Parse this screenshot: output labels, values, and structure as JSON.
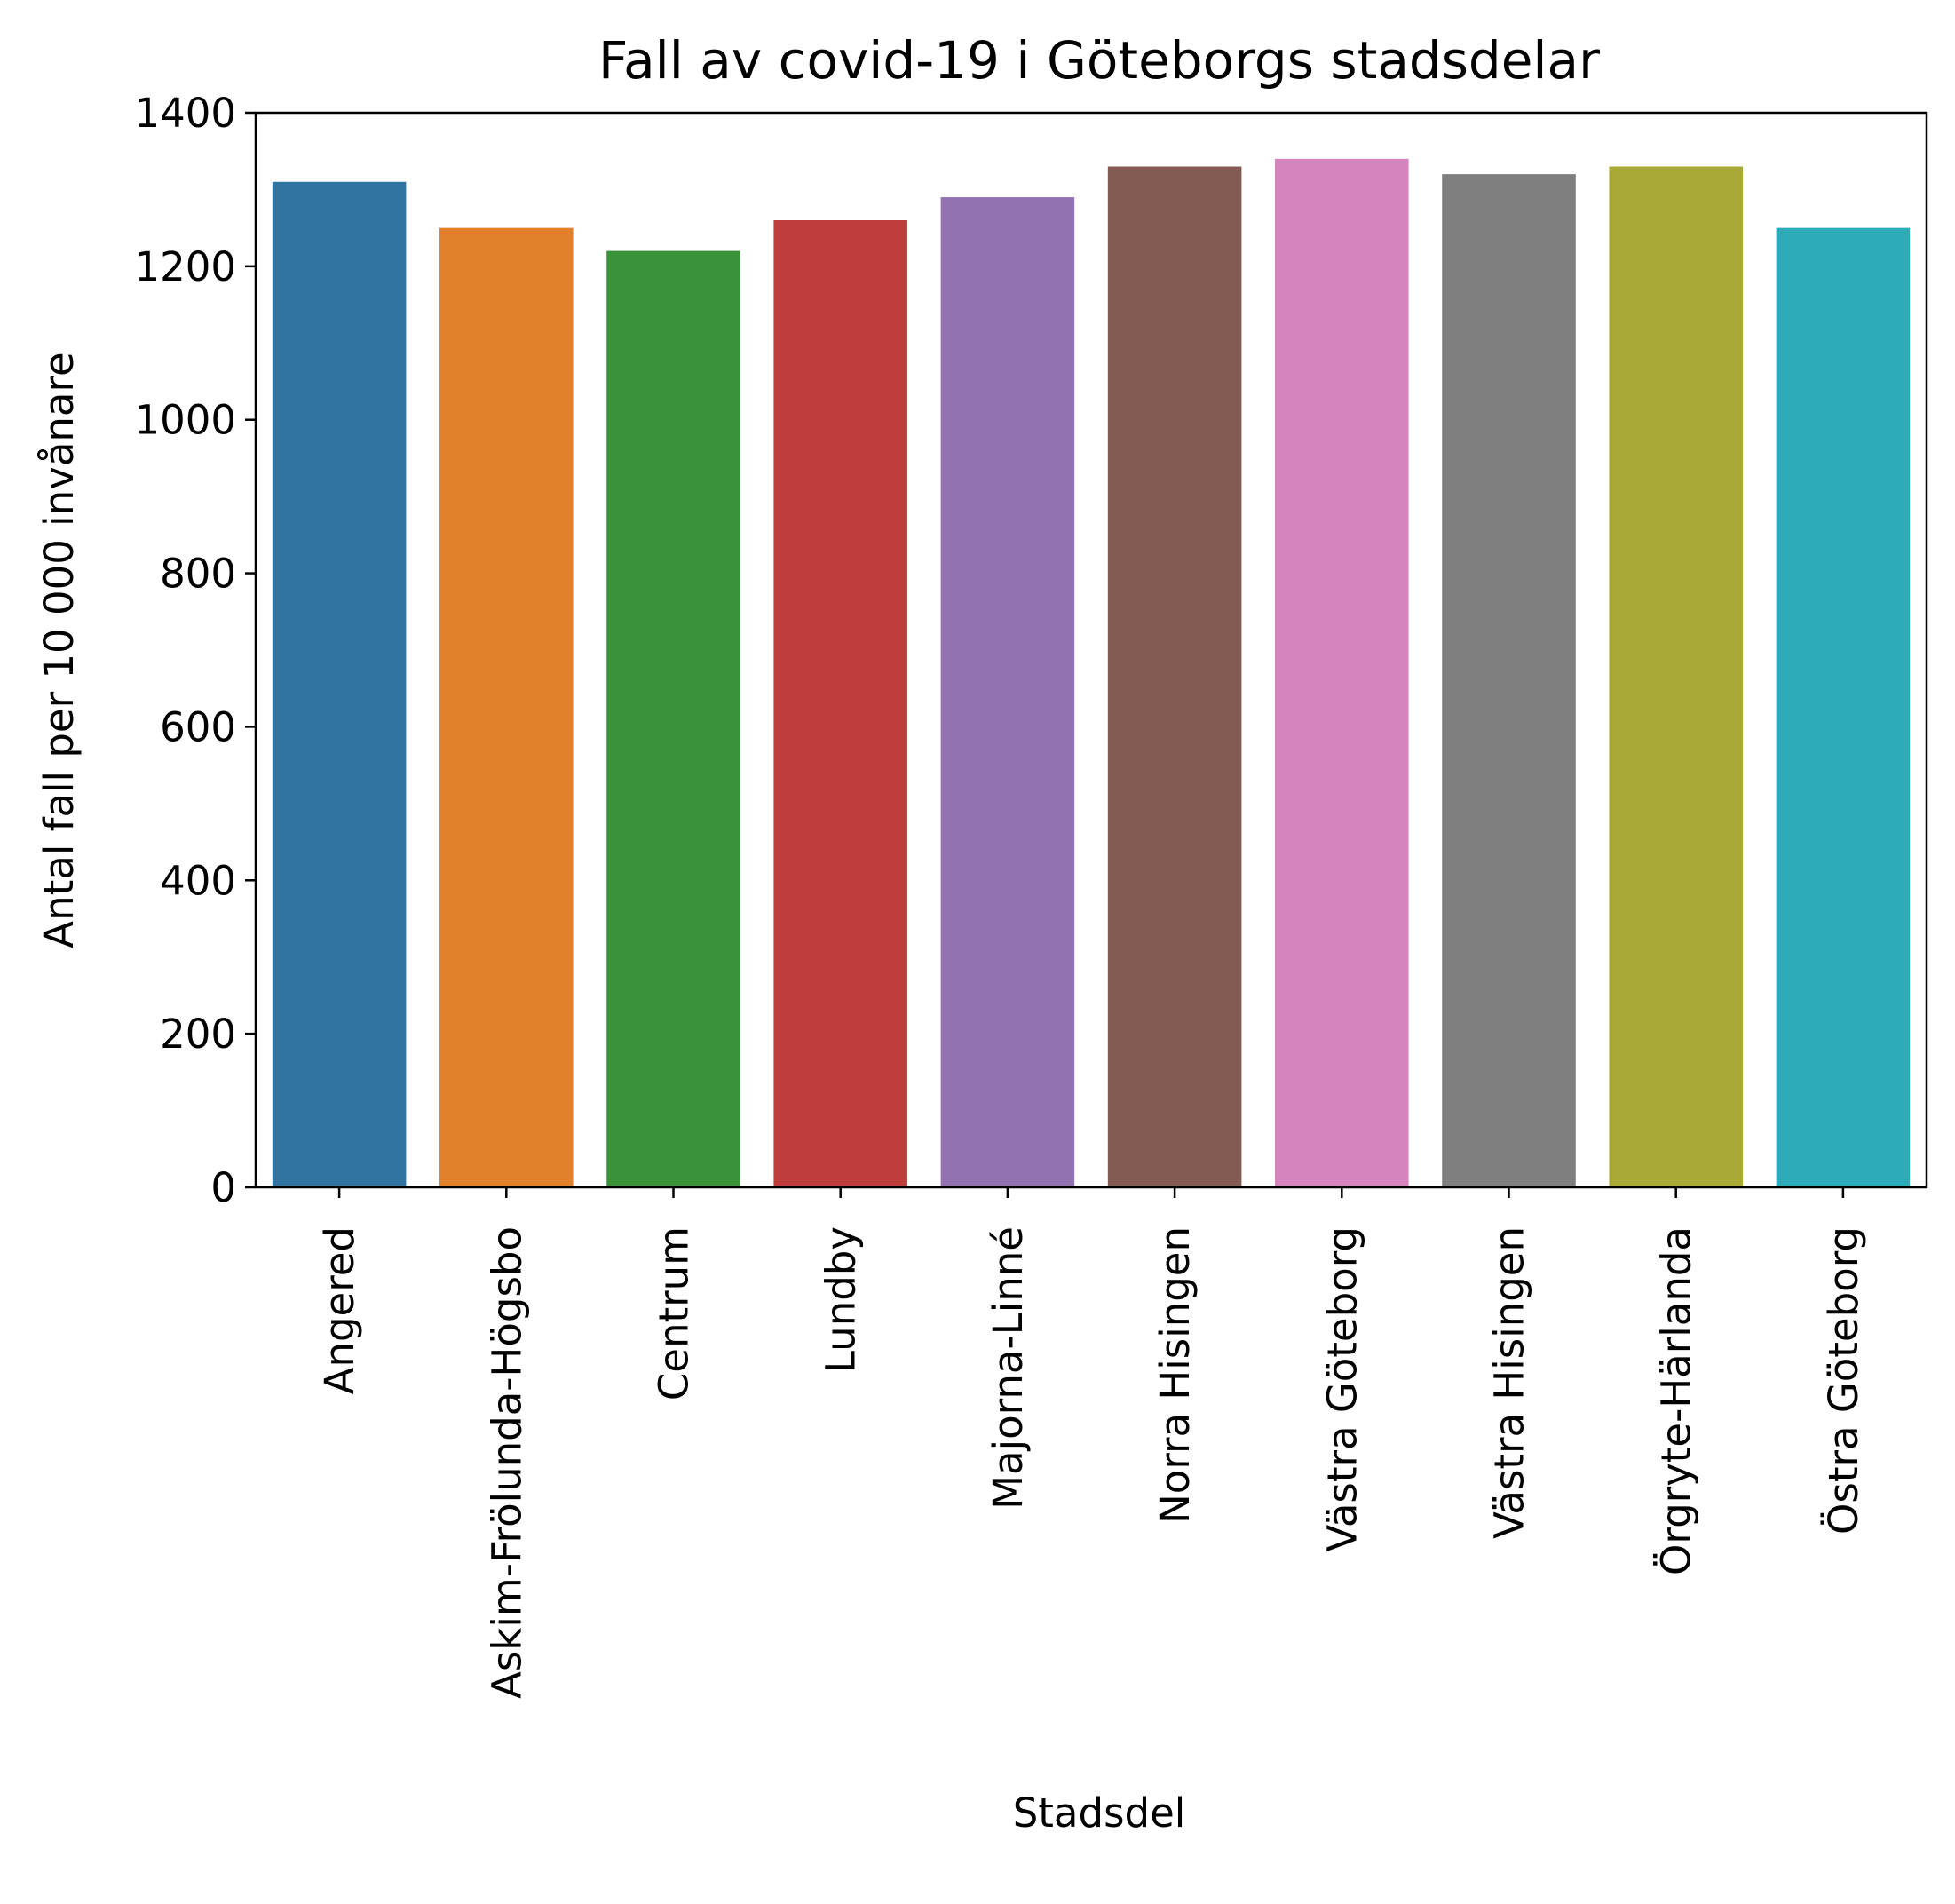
{
  "chart_data": {
    "type": "bar",
    "title": "Fall av covid-19 i Göteborgs stadsdelar",
    "xlabel": "Stadsdel",
    "ylabel": "Antal fall per 10 000 invånare",
    "categories": [
      "Angered",
      "Askim-Frölunda-Högsbo",
      "Centrum",
      "Lundby",
      "Majorna-Linné",
      "Norra Hisingen",
      "Västra Göteborg",
      "Västra Hisingen",
      "Örgryte-Härlanda",
      "Östra Göteborg"
    ],
    "values": [
      1310,
      1250,
      1220,
      1260,
      1290,
      1330,
      1340,
      1320,
      1330,
      1250
    ],
    "colors": [
      "#3274a1",
      "#e1812c",
      "#3a923a",
      "#c03d3e",
      "#9372b2",
      "#845b53",
      "#d684bd",
      "#7f7f7f",
      "#a9aa35",
      "#2eabb8"
    ],
    "ylim": [
      0,
      1400
    ],
    "yticks": [
      0,
      200,
      400,
      600,
      800,
      1000,
      1200,
      1400
    ],
    "grid": false,
    "legend": "none"
  }
}
